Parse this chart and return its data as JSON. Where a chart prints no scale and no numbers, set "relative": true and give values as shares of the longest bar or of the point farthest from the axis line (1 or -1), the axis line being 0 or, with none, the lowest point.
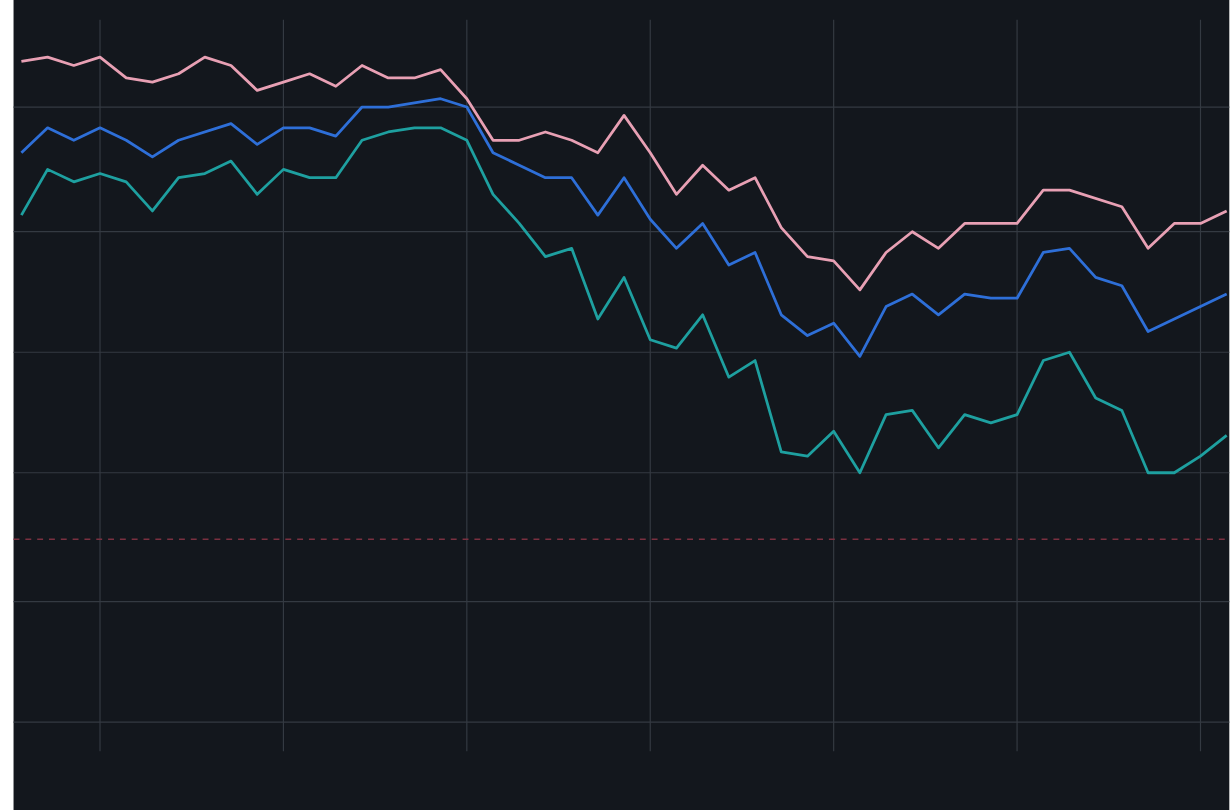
{
  "chart_data": {
    "type": "line",
    "relative": true,
    "grid": true,
    "categories": [
      null,
      null,
      null,
      null,
      null,
      null,
      null,
      null,
      null,
      null,
      null,
      null,
      null,
      null,
      null,
      null,
      null,
      null,
      null,
      null,
      null,
      null,
      null,
      null,
      null,
      null,
      null,
      null,
      null,
      null,
      null,
      null,
      null,
      null,
      null,
      null,
      null,
      null,
      null,
      null,
      null,
      null,
      null,
      null,
      null,
      null,
      null
    ],
    "series": [
      {
        "color": "#e8a0b4",
        "values": [
          0.99,
          1.0,
          0.98,
          1.0,
          0.95,
          0.94,
          0.96,
          1.0,
          0.98,
          0.92,
          0.94,
          0.96,
          0.93,
          0.98,
          0.95,
          0.95,
          0.97,
          0.9,
          0.8,
          0.8,
          0.82,
          0.8,
          0.77,
          0.86,
          0.77,
          0.67,
          0.74,
          0.68,
          0.71,
          0.59,
          0.52,
          0.51,
          0.44,
          0.53,
          0.58,
          0.54,
          0.6,
          0.6,
          0.6,
          0.68,
          0.68,
          0.66,
          0.64,
          0.54,
          0.6,
          0.6,
          0.63
        ]
      },
      {
        "color": "#2e6fd8",
        "values": [
          0.77,
          0.83,
          0.8,
          0.83,
          0.8,
          0.76,
          0.8,
          0.82,
          0.84,
          0.79,
          0.83,
          0.83,
          0.81,
          0.88,
          0.88,
          0.89,
          0.9,
          0.88,
          0.77,
          0.74,
          0.71,
          0.71,
          0.62,
          0.71,
          0.61,
          0.54,
          0.6,
          0.5,
          0.53,
          0.38,
          0.33,
          0.36,
          0.28,
          0.4,
          0.43,
          0.38,
          0.43,
          0.42,
          0.42,
          0.53,
          0.54,
          0.47,
          0.45,
          0.34,
          0.37,
          0.4,
          0.43
        ]
      },
      {
        "color": "#1ea0a0",
        "values": [
          0.62,
          0.73,
          0.7,
          0.72,
          0.7,
          0.63,
          0.71,
          0.72,
          0.75,
          0.67,
          0.73,
          0.71,
          0.71,
          0.8,
          0.82,
          0.83,
          0.83,
          0.8,
          0.67,
          0.6,
          0.52,
          0.54,
          0.37,
          0.47,
          0.32,
          0.3,
          0.38,
          0.23,
          0.27,
          0.05,
          0.04,
          0.1,
          0.0,
          0.14,
          0.15,
          0.06,
          0.14,
          0.12,
          0.14,
          0.27,
          0.29,
          0.18,
          0.15,
          0.0,
          0.0,
          0.04,
          0.09
        ]
      }
    ],
    "ref_lines": [
      {
        "axis": "y",
        "value": -0.16,
        "color": "#7a3040",
        "line_style": "dashed"
      }
    ]
  }
}
